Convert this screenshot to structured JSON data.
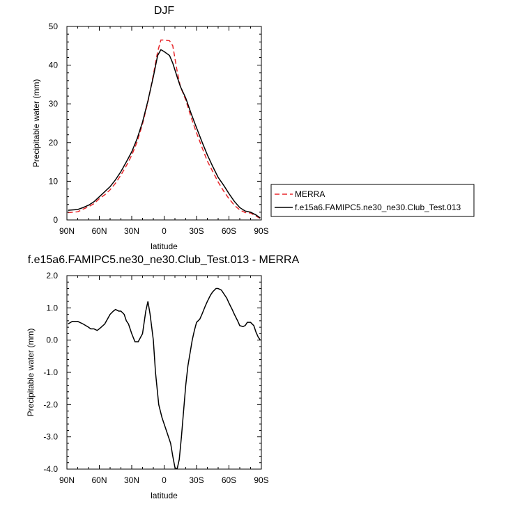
{
  "chart_data": [
    {
      "type": "line",
      "title": "DJF",
      "xlabel": "latitude",
      "ylabel": "Precipitable water (mm)",
      "xlim": [
        90,
        -90
      ],
      "ylim": [
        0,
        50
      ],
      "xticks": [
        90,
        60,
        30,
        0,
        -30,
        -60,
        -90
      ],
      "xtick_labels": [
        "90N",
        "60N",
        "30N",
        "0",
        "30S",
        "60S",
        "90S"
      ],
      "yticks": [
        0,
        10,
        20,
        30,
        40,
        50
      ],
      "ytick_labels": [
        "0",
        "10",
        "20",
        "30",
        "40",
        "50"
      ],
      "legend_position": "right",
      "series": [
        {
          "name": "MERRA",
          "color": "#e8272b",
          "dash": "dashed",
          "x": [
            89,
            80,
            75,
            70,
            65,
            60,
            55,
            50,
            45,
            40,
            35,
            30,
            25,
            20,
            15,
            10,
            6,
            3,
            0,
            -5,
            -8,
            -12,
            -15,
            -20,
            -25,
            -30,
            -35,
            -40,
            -45,
            -50,
            -55,
            -60,
            -65,
            -70,
            -75,
            -80,
            -85,
            -89
          ],
          "values": [
            1.9,
            2.1,
            2.8,
            3.4,
            4.2,
            5.5,
            6.5,
            7.8,
            9.5,
            11.6,
            14.0,
            16.7,
            20.2,
            24.8,
            30.5,
            37.5,
            43.5,
            46.5,
            46.5,
            46.3,
            45.0,
            38.5,
            34.5,
            31.0,
            26.5,
            22.5,
            18.8,
            15.2,
            12.5,
            9.8,
            7.5,
            5.5,
            3.8,
            2.6,
            1.9,
            1.8,
            1.0,
            0.4
          ]
        },
        {
          "name": "f.e15a6.FAMIPC5.ne30_ne30.Club_Test.013",
          "color": "#000000",
          "dash": "solid",
          "x": [
            89,
            80,
            75,
            70,
            65,
            60,
            55,
            50,
            45,
            40,
            35,
            30,
            25,
            20,
            15,
            10,
            6,
            3,
            0,
            -5,
            -8,
            -12,
            -15,
            -20,
            -25,
            -30,
            -35,
            -40,
            -45,
            -50,
            -55,
            -60,
            -65,
            -70,
            -75,
            -80,
            -85,
            -89
          ],
          "values": [
            2.5,
            2.7,
            3.2,
            3.8,
            4.7,
            6.0,
            7.3,
            8.6,
            10.4,
            12.5,
            15.0,
            17.6,
            21.0,
            25.3,
            30.8,
            37.0,
            42.5,
            44.0,
            43.5,
            42.5,
            40.5,
            37.0,
            34.5,
            31.5,
            27.5,
            23.8,
            20.2,
            16.8,
            13.8,
            11.0,
            9.0,
            6.8,
            4.8,
            3.2,
            2.3,
            2.0,
            1.3,
            0.5
          ]
        }
      ]
    },
    {
      "type": "line",
      "title": "f.e15a6.FAMIPC5.ne30_ne30.Club_Test.013 - MERRA",
      "xlabel": "latitude",
      "ylabel": "Precipitable water (mm)",
      "xlim": [
        90,
        -90
      ],
      "ylim": [
        -4.0,
        2.0
      ],
      "xticks": [
        90,
        60,
        30,
        0,
        -30,
        -60,
        -90
      ],
      "xtick_labels": [
        "90N",
        "60N",
        "30N",
        "0",
        "30S",
        "60S",
        "90S"
      ],
      "yticks": [
        2.0,
        1.0,
        0.0,
        -1.0,
        -2.0,
        -3.0,
        -4.0
      ],
      "ytick_labels": [
        "2.0",
        "1.0",
        "0.0",
        "-1.0",
        "-2.0",
        "-3.0",
        "-4.0"
      ],
      "series": [
        {
          "color": "#000000",
          "x": [
            89,
            85,
            80,
            75,
            70,
            68,
            65,
            62,
            60,
            55,
            50,
            47,
            45,
            42,
            40,
            37,
            35,
            33,
            30,
            27,
            24,
            20,
            17,
            15,
            13,
            10,
            8,
            5,
            2,
            0,
            -2,
            -4,
            -6,
            -8,
            -10,
            -12,
            -14,
            -16,
            -18,
            -20,
            -22,
            -24,
            -26,
            -28,
            -30,
            -33,
            -35,
            -38,
            -40,
            -43,
            -45,
            -48,
            -50,
            -53,
            -55,
            -58,
            -60,
            -63,
            -65,
            -68,
            -70,
            -73,
            -75,
            -77,
            -80,
            -83,
            -85,
            -87,
            -89
          ],
          "values": [
            0.5,
            0.58,
            0.58,
            0.5,
            0.4,
            0.35,
            0.35,
            0.3,
            0.35,
            0.5,
            0.8,
            0.9,
            0.95,
            0.9,
            0.9,
            0.8,
            0.6,
            0.5,
            0.2,
            -0.05,
            -0.05,
            0.2,
            0.9,
            1.2,
            0.8,
            0.0,
            -1.0,
            -2.0,
            -2.4,
            -2.6,
            -2.8,
            -3.0,
            -3.2,
            -3.6,
            -3.95,
            -4.0,
            -3.7,
            -3.0,
            -2.2,
            -1.4,
            -0.8,
            -0.4,
            0.0,
            0.3,
            0.55,
            0.65,
            0.8,
            1.05,
            1.2,
            1.4,
            1.5,
            1.6,
            1.6,
            1.55,
            1.45,
            1.3,
            1.15,
            0.95,
            0.8,
            0.6,
            0.45,
            0.42,
            0.45,
            0.55,
            0.55,
            0.45,
            0.25,
            0.1,
            0.0
          ]
        }
      ]
    }
  ]
}
